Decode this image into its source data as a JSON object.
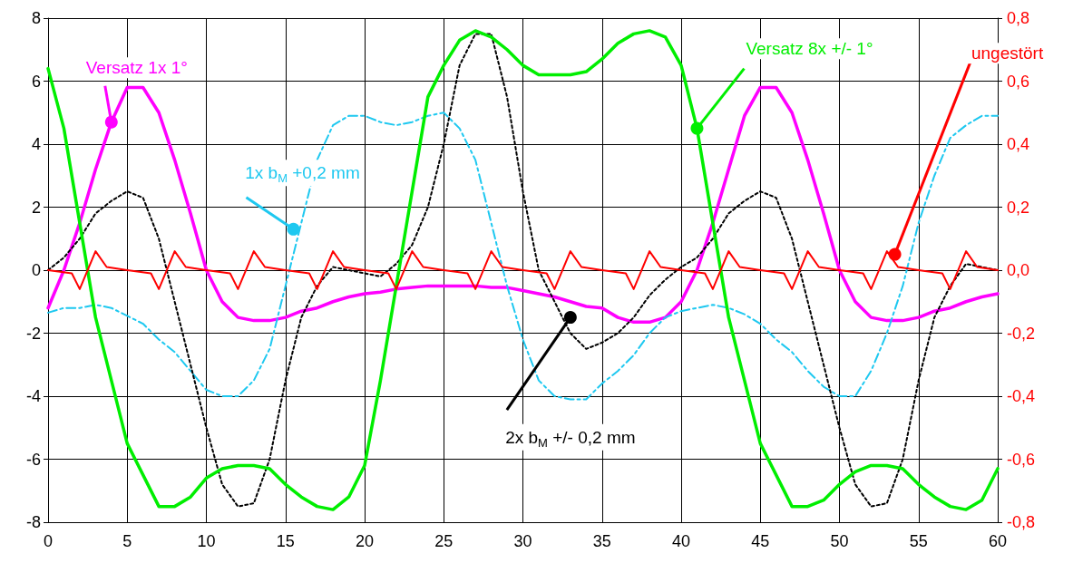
{
  "chart_data": {
    "type": "line",
    "x": [
      0,
      1,
      2,
      3,
      4,
      5,
      6,
      7,
      8,
      9,
      10,
      11,
      12,
      13,
      14,
      15,
      16,
      17,
      18,
      19,
      20,
      21,
      22,
      23,
      24,
      25,
      26,
      27,
      28,
      29,
      30,
      31,
      32,
      33,
      34,
      35,
      36,
      37,
      38,
      39,
      40,
      41,
      42,
      43,
      44,
      45,
      46,
      47,
      48,
      49,
      50,
      51,
      52,
      53,
      54,
      55,
      56,
      57,
      58,
      59,
      60
    ],
    "series": [
      {
        "color": "#ff00ff",
        "line_style": "solid",
        "values": [
          -1.2,
          0,
          1.5,
          3.2,
          4.7,
          5.8,
          5.8,
          5.0,
          3.5,
          1.8,
          0.0,
          -1.0,
          -1.5,
          -1.6,
          -1.6,
          -1.5,
          -1.3,
          -1.2,
          -1.0,
          -0.85,
          -0.75,
          -0.7,
          -0.6,
          -0.55,
          -0.5,
          -0.5,
          -0.5,
          -0.5,
          -0.55,
          -0.55,
          -0.65,
          -0.75,
          -0.85,
          -1.0,
          -1.15,
          -1.2,
          -1.5,
          -1.65,
          -1.65,
          -1.5,
          -1.0,
          0.0,
          1.5,
          3.2,
          4.9,
          5.8,
          5.8,
          5.0,
          3.5,
          1.8,
          0.0,
          -1.0,
          -1.5,
          -1.6,
          -1.6,
          -1.5,
          -1.3,
          -1.2,
          -1.0,
          -0.85,
          -0.75
        ]
      },
      {
        "color": "#1ec8f0",
        "line_style": "dashed",
        "values": [
          -1.35,
          -1.2,
          -1.2,
          -1.1,
          -1.2,
          -1.45,
          -1.7,
          -2.2,
          -2.6,
          -3.2,
          -3.8,
          -4.0,
          -4.0,
          -3.5,
          -2.5,
          -0.5,
          1.5,
          3.5,
          4.6,
          4.9,
          4.9,
          4.7,
          4.6,
          4.7,
          4.9,
          5.0,
          4.5,
          3.5,
          1.5,
          -0.5,
          -2.2,
          -3.5,
          -4.0,
          -4.1,
          -4.1,
          -3.6,
          -3.2,
          -2.7,
          -2.0,
          -1.5,
          -1.3,
          -1.2,
          -1.1,
          -1.2,
          -1.4,
          -1.7,
          -2.2,
          -2.6,
          -3.2,
          -3.7,
          -4.0,
          -4.0,
          -3.2,
          -2.0,
          -0.5,
          1.5,
          3.0,
          4.2,
          4.6,
          4.9,
          4.9
        ]
      },
      {
        "color": "#000000",
        "line_style": "dotted",
        "values": [
          0,
          0.4,
          1.0,
          1.8,
          2.2,
          2.5,
          2.3,
          1.0,
          -1.0,
          -3.0,
          -5.0,
          -6.8,
          -7.5,
          -7.4,
          -6.0,
          -3.5,
          -1.5,
          -0.5,
          0.1,
          0.0,
          -0.1,
          -0.2,
          0.2,
          0.8,
          2.0,
          4.0,
          6.5,
          7.5,
          7.5,
          5.5,
          2.5,
          0.0,
          -1.0,
          -2.0,
          -2.5,
          -2.3,
          -2.0,
          -1.5,
          -0.8,
          -0.3,
          0.1,
          0.4,
          1.0,
          1.8,
          2.2,
          2.5,
          2.3,
          1.0,
          -1.0,
          -3.0,
          -5.0,
          -6.8,
          -7.5,
          -7.4,
          -6.0,
          -3.5,
          -1.5,
          -0.5,
          0.2,
          0.1,
          0.0
        ]
      },
      {
        "color": "#00ee00",
        "line_style": "solid",
        "values": [
          6.4,
          4.5,
          1.5,
          -1.5,
          -3.5,
          -5.5,
          -6.5,
          -7.5,
          -7.5,
          -7.2,
          -6.6,
          -6.3,
          -6.2,
          -6.2,
          -6.3,
          -6.8,
          -7.2,
          -7.5,
          -7.6,
          -7.2,
          -6.2,
          -3.5,
          -0.5,
          2.5,
          5.5,
          6.5,
          7.3,
          7.6,
          7.4,
          7.0,
          6.5,
          6.2,
          6.2,
          6.2,
          6.3,
          6.7,
          7.2,
          7.5,
          7.6,
          7.4,
          6.5,
          4.5,
          1.5,
          -1.5,
          -3.5,
          -5.5,
          -6.5,
          -7.5,
          -7.5,
          -7.3,
          -6.8,
          -6.4,
          -6.2,
          -6.2,
          -6.3,
          -6.8,
          -7.2,
          -7.5,
          -7.6,
          -7.3,
          -6.3
        ]
      },
      {
        "color": "#ff0000",
        "line_style": "solid",
        "axis": "y2",
        "x": [
          0,
          1.5,
          2,
          3,
          3.7,
          5,
          6.5,
          7,
          8,
          8.7,
          10,
          11.5,
          12,
          13,
          13.7,
          15,
          16.5,
          17,
          18,
          18.7,
          20,
          21.5,
          22,
          23,
          23.7,
          25,
          26.5,
          27,
          28,
          28.7,
          30,
          31.5,
          32,
          33,
          33.7,
          35,
          36.5,
          37,
          38,
          38.7,
          40,
          41.5,
          42,
          43,
          43.7,
          45,
          46.5,
          47,
          48,
          48.7,
          50,
          51.5,
          52,
          53,
          53.7,
          55,
          56.5,
          57,
          58,
          58.7,
          60
        ],
        "values": [
          0,
          -0.01,
          -0.06,
          0.06,
          0.01,
          0,
          -0.01,
          -0.06,
          0.06,
          0.01,
          0,
          -0.01,
          -0.06,
          0.06,
          0.01,
          0,
          -0.01,
          -0.06,
          0.06,
          0.01,
          0,
          -0.01,
          -0.06,
          0.06,
          0.01,
          0,
          -0.01,
          -0.06,
          0.06,
          0.01,
          0,
          -0.01,
          -0.06,
          0.06,
          0.01,
          0,
          -0.01,
          -0.06,
          0.06,
          0.01,
          0,
          -0.01,
          -0.06,
          0.06,
          0.01,
          0,
          -0.01,
          -0.06,
          0.06,
          0.01,
          0,
          -0.01,
          -0.06,
          0.06,
          0.01,
          0,
          -0.01,
          -0.06,
          0.06,
          0.01,
          0
        ]
      }
    ],
    "annotations": [
      {
        "text": "Versatz 1x 1°",
        "x": 4,
        "y": 4.7
      },
      {
        "text": "1x b$_{M}$ +0,2 mm",
        "x": 15.5,
        "y": 1.3
      },
      {
        "text": "2x b$_{M}$ +/- 0,2 mm",
        "x": 33,
        "y": -1.5
      },
      {
        "text": "Versatz 8x +/- 1°",
        "x": 41,
        "y": 4.5
      },
      {
        "text": "ungestört",
        "x": 53.5,
        "y": 0.5
      }
    ],
    "xlim": [
      0,
      60
    ],
    "xticks": [
      0,
      5,
      10,
      15,
      20,
      25,
      30,
      35,
      40,
      45,
      50,
      55,
      60
    ],
    "ylim": [
      -8,
      8
    ],
    "yticks": [
      -8,
      -6,
      -4,
      -2,
      0,
      2,
      4,
      6,
      8
    ],
    "y2lim": [
      -0.8,
      0.8
    ],
    "y2ticks": [
      {
        "value": -0.8,
        "label": "-0,8"
      },
      {
        "value": -0.6,
        "label": "-0,6"
      },
      {
        "value": -0.4,
        "label": "-0,4"
      },
      {
        "value": -0.2,
        "label": "-0,2"
      },
      {
        "value": 0,
        "label": "0,0"
      },
      {
        "value": 0.2,
        "label": "0,2"
      },
      {
        "value": 0.4,
        "label": "0,4"
      },
      {
        "value": 0.6,
        "label": "0,6"
      },
      {
        "value": 0.8,
        "label": "0,8"
      }
    ],
    "grid": true,
    "marker": "none"
  }
}
